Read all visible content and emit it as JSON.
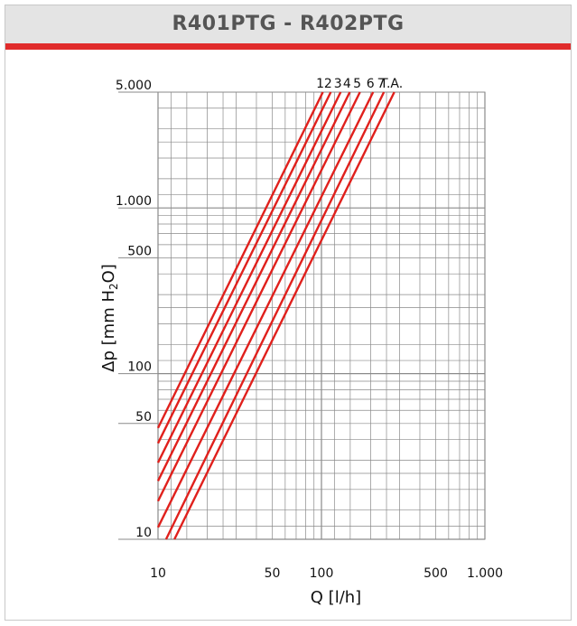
{
  "header": {
    "title": "R401PTG - R402PTG"
  },
  "colors": {
    "curve": "#e0201c",
    "grid": "#8a8a8a",
    "header_bg": "#e4e4e4",
    "rule": "#e02b2b"
  },
  "chart_data": {
    "type": "line",
    "title": "",
    "xlabel": "Q [l/h]",
    "ylabel_main": "Δp [mm H",
    "ylabel_sub": "2",
    "ylabel_end": "O]",
    "x_scale": "log",
    "y_scale": "log",
    "xlim": [
      10,
      1000
    ],
    "ylim": [
      10,
      5000
    ],
    "x_ticks": [
      {
        "v": 10,
        "label": "10"
      },
      {
        "v": 50,
        "label": "50"
      },
      {
        "v": 100,
        "label": "100"
      },
      {
        "v": 500,
        "label": "500"
      },
      {
        "v": 1000,
        "label": "1.000"
      }
    ],
    "y_ticks": [
      {
        "v": 10,
        "label": "10"
      },
      {
        "v": 50,
        "label": "50"
      },
      {
        "v": 100,
        "label": "100"
      },
      {
        "v": 500,
        "label": "500"
      },
      {
        "v": 1000,
        "label": "1.000"
      },
      {
        "v": 5000,
        "label": "5.000"
      }
    ],
    "grid": true,
    "series": [
      {
        "name": "1",
        "x": [
          10,
          102
        ],
        "y": [
          47,
          5000
        ]
      },
      {
        "name": "2",
        "x": [
          10,
          114
        ],
        "y": [
          38,
          5000
        ]
      },
      {
        "name": "3",
        "x": [
          10,
          131
        ],
        "y": [
          29,
          5000
        ]
      },
      {
        "name": "4",
        "x": [
          10,
          149
        ],
        "y": [
          22.5,
          5000
        ]
      },
      {
        "name": "5",
        "x": [
          10,
          172
        ],
        "y": [
          17,
          5000
        ]
      },
      {
        "name": "6",
        "x": [
          10,
          207
        ],
        "y": [
          11.8,
          5000
        ]
      },
      {
        "name": "7",
        "x": [
          11.2,
          241
        ],
        "y": [
          10,
          5000
        ]
      },
      {
        "name": "T.A.",
        "x": [
          12.6,
          279
        ],
        "y": [
          10,
          5000
        ]
      }
    ]
  }
}
